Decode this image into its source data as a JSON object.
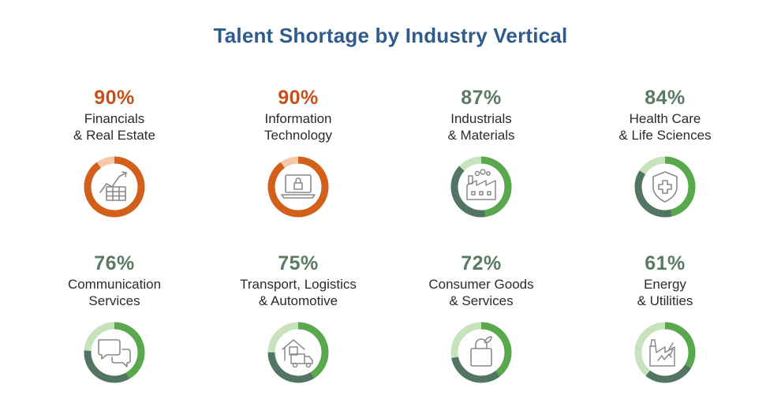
{
  "title": "Talent Shortage by Industry Vertical",
  "colors": {
    "title": "#2f5c8c",
    "high_pct": "#c4511c",
    "high_ring": "#d2601b",
    "high_track": "#f6c8a7",
    "low_pct": "#5a7a64",
    "ring_green": "#5aa84e",
    "ring_dark": "#527463",
    "green_track": "#c7e3bb",
    "icon_stroke": "#8a8a8a"
  },
  "chart_data": {
    "type": "donut",
    "title": "Talent Shortage by Industry Vertical",
    "items": [
      {
        "value": 90,
        "pct": "90%",
        "lines": [
          "Financials",
          "& Real Estate"
        ],
        "icon": "chart-table-icon",
        "scheme": "orange"
      },
      {
        "value": 90,
        "pct": "90%",
        "lines": [
          "Information",
          "Technology"
        ],
        "icon": "laptop-lock-icon",
        "scheme": "orange"
      },
      {
        "value": 87,
        "pct": "87%",
        "lines": [
          "Industrials",
          "& Materials"
        ],
        "icon": "factory-icon",
        "scheme": "green"
      },
      {
        "value": 84,
        "pct": "84%",
        "lines": [
          "Health Care",
          "& Life Sciences"
        ],
        "icon": "shield-cross-icon",
        "scheme": "green"
      },
      {
        "value": 76,
        "pct": "76%",
        "lines": [
          "Communication",
          "Services"
        ],
        "icon": "chat-bubbles-icon",
        "scheme": "green"
      },
      {
        "value": 75,
        "pct": "75%",
        "lines": [
          "Transport, Logistics",
          "& Automotive"
        ],
        "icon": "warehouse-truck-icon",
        "scheme": "green"
      },
      {
        "value": 72,
        "pct": "72%",
        "lines": [
          "Consumer Goods",
          "& Services"
        ],
        "icon": "shopping-bag-icon",
        "scheme": "green"
      },
      {
        "value": 61,
        "pct": "61%",
        "lines": [
          "Energy",
          "& Utilities"
        ],
        "icon": "energy-plant-icon",
        "scheme": "green"
      }
    ]
  }
}
